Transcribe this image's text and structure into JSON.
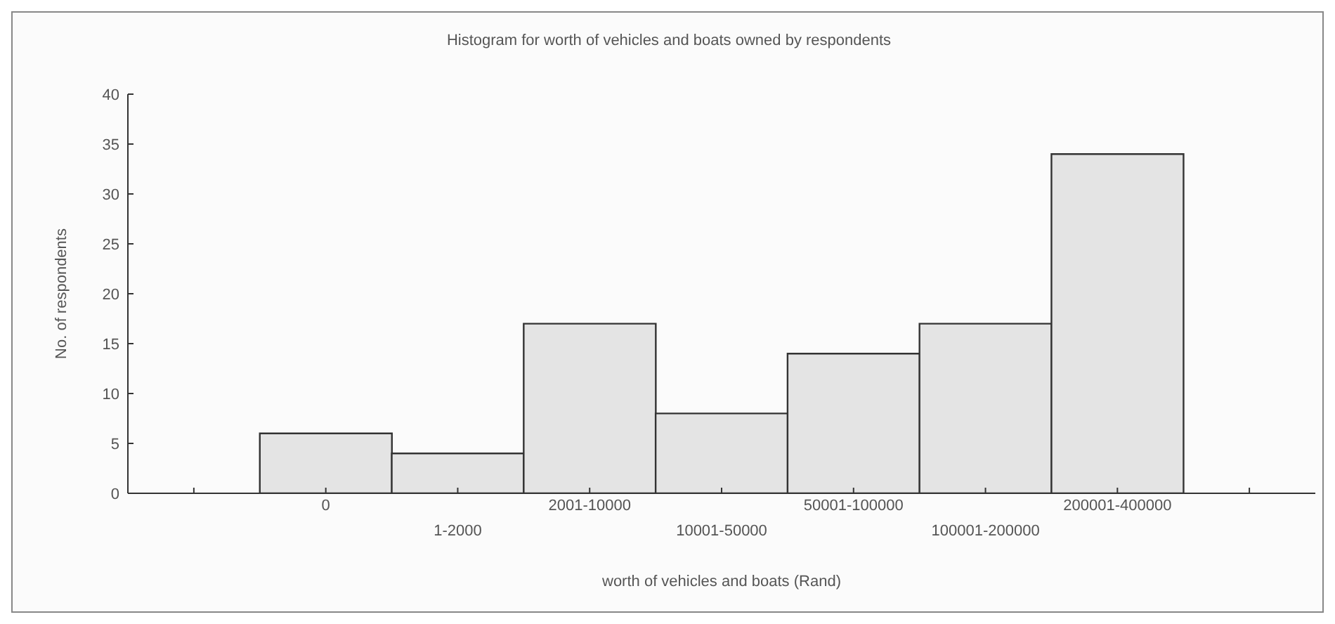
{
  "chart_data": {
    "type": "bar",
    "title": "Histogram for worth of vehicles and boats owned by respondents",
    "xlabel": "worth of vehicles and boats (Rand)",
    "ylabel": "No. of respondents",
    "categories": [
      null,
      "0",
      "1-2000",
      "2001-10000",
      "10001-50000",
      "50001-100000",
      "100001-200000",
      "200001-400000",
      null
    ],
    "values": [
      null,
      6,
      4,
      17,
      8,
      14,
      17,
      34,
      null
    ],
    "color": "#e4e4e4",
    "ylim": [
      0,
      40
    ],
    "yticks": [
      0,
      5,
      10,
      15,
      20,
      25,
      30,
      35,
      40
    ]
  }
}
